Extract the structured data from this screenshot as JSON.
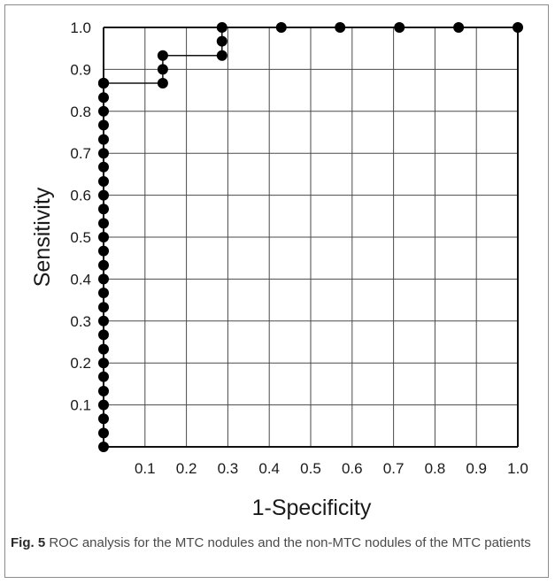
{
  "figure": {
    "label": "Fig. 5",
    "caption": "ROC analysis for the MTC nodules and the non-MTC nodules of the MTC patients"
  },
  "chart_data": {
    "type": "line",
    "xlabel": "1-Specificity",
    "ylabel": "Sensitivity",
    "xlim": [
      0,
      1.0
    ],
    "ylim": [
      0,
      1.0
    ],
    "xticks": [
      "0.1",
      "0.2",
      "0.3",
      "0.4",
      "0.5",
      "0.6",
      "0.7",
      "0.8",
      "0.9",
      "1.0"
    ],
    "yticks": [
      "0.1",
      "0.2",
      "0.3",
      "0.4",
      "0.5",
      "0.6",
      "0.7",
      "0.8",
      "0.9",
      "1.0"
    ],
    "grid": true,
    "series": [
      {
        "x": [
          0,
          0,
          0,
          0,
          0,
          0,
          0,
          0,
          0,
          0,
          0,
          0,
          0,
          0,
          0,
          0,
          0,
          0,
          0,
          0,
          0,
          0,
          0,
          0,
          0,
          0,
          0,
          0,
          0,
          0,
          0,
          0.143,
          0.143,
          0.143,
          0.286,
          0.286,
          0.286,
          0.429,
          0.571,
          0.714,
          0.857,
          1.0
        ],
        "y": [
          0,
          0.033,
          0.067,
          0.1,
          0.133,
          0.167,
          0.2,
          0.233,
          0.267,
          0.3,
          0.333,
          0.367,
          0.4,
          0.433,
          0.467,
          0.5,
          0.533,
          0.567,
          0.6,
          0.633,
          0.667,
          0.7,
          0.733,
          0.767,
          0.8,
          0.833,
          0.867,
          0.867,
          0.867,
          0.867,
          0.867,
          0.867,
          0.9,
          0.933,
          0.933,
          0.967,
          1.0,
          1.0,
          1.0,
          1.0,
          1.0,
          1.0
        ]
      }
    ]
  }
}
